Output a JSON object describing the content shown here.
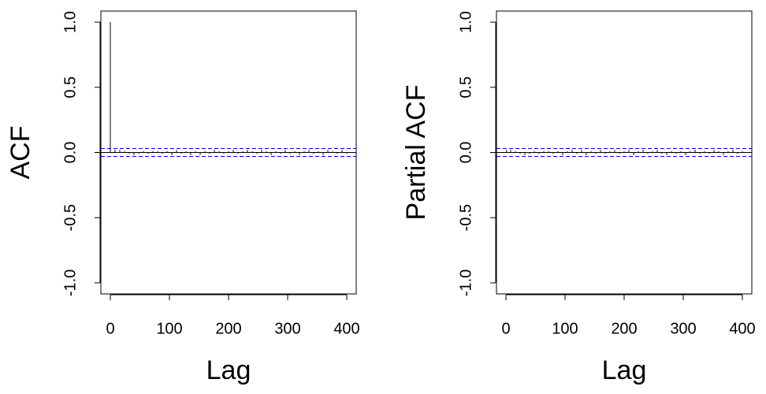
{
  "chart_data": [
    {
      "type": "acf",
      "ylabel": "ACF",
      "xlabel": "Lag",
      "x": [
        0,
        8,
        16,
        24,
        32,
        40,
        48,
        56,
        64,
        72,
        80,
        88,
        96,
        104,
        112,
        120,
        128,
        136,
        144,
        152,
        160,
        168,
        176,
        184,
        192,
        200,
        208,
        216,
        224,
        232,
        240,
        248,
        256,
        264,
        272,
        280,
        288,
        296,
        304,
        312,
        320,
        328,
        336,
        344,
        352,
        360,
        368,
        376,
        384,
        392,
        400
      ],
      "values": [
        1,
        0.02,
        0.02,
        0.01,
        -0.01,
        -0.02,
        -0.01,
        0.01,
        -0.01,
        0.01,
        0.01,
        -0.01,
        0.01,
        -0.02,
        0.02,
        -0.01,
        0.01,
        -0.02,
        0.01,
        -0.02,
        0.01,
        -0.01,
        0.02,
        0.01,
        -0.01,
        0.01,
        0.02,
        -0.01,
        0.01,
        0.02,
        0.01,
        -0.01,
        0.02,
        0.01,
        -0.02,
        0.01,
        -0.01,
        0.02,
        -0.01,
        0.01,
        -0.02,
        0.01,
        0.02,
        -0.01,
        0.01,
        -0.02,
        0.02,
        0.01,
        -0.01,
        0.02,
        -0.01
      ],
      "color": "#000000",
      "ci": 0.03,
      "ci_color": "#0000ff",
      "xlim": [
        -16,
        416
      ],
      "ylim": [
        -1.085,
        1.085
      ],
      "xticks": [
        0,
        100,
        200,
        300,
        400
      ],
      "yticks": [
        {
          "value": -1,
          "label": "-1.0"
        },
        {
          "value": -0.5,
          "label": "-0.5"
        },
        {
          "value": 0,
          "label": "0.0"
        },
        {
          "value": 0.5,
          "label": "0.5"
        },
        {
          "value": 1,
          "label": "1.0"
        }
      ]
    },
    {
      "type": "acf",
      "ylabel": "Partial ACF",
      "xlabel": "Lag",
      "x": [
        1,
        8,
        16,
        24,
        32,
        40,
        48,
        56,
        64,
        72,
        80,
        88,
        96,
        104,
        112,
        120,
        128,
        136,
        144,
        152,
        160,
        168,
        176,
        184,
        192,
        200,
        208,
        216,
        224,
        232,
        240,
        248,
        256,
        264,
        272,
        280,
        288,
        296,
        304,
        312,
        320,
        328,
        336,
        344,
        352,
        360,
        368,
        376,
        384,
        392,
        400
      ],
      "values": [
        0.02,
        0.02,
        0.01,
        -0.01,
        -0.02,
        -0.01,
        0.01,
        -0.01,
        0.01,
        0.01,
        -0.01,
        0.01,
        -0.02,
        0.01,
        0.02,
        -0.01,
        0.02,
        -0.02,
        0.01,
        -0.01,
        0.02,
        -0.01,
        0.01,
        0.02,
        -0.01,
        0.01,
        0.02,
        -0.02,
        0.01,
        0.02,
        -0.01,
        0.01,
        0.02,
        -0.01,
        -0.02,
        0.01,
        -0.01,
        0.01,
        -0.02,
        0.01,
        0.02,
        -0.01,
        0.01,
        -0.01,
        0.02,
        0.01,
        -0.02,
        0.01,
        0.02,
        -0.01,
        0.01
      ],
      "color": "#000000",
      "ci": 0.03,
      "ci_color": "#0000ff",
      "xlim": [
        -16,
        416
      ],
      "ylim": [
        -1.085,
        1.085
      ],
      "xticks": [
        0,
        100,
        200,
        300,
        400
      ],
      "yticks": [
        {
          "value": -1,
          "label": "-1.0"
        },
        {
          "value": -0.5,
          "label": "-0.5"
        },
        {
          "value": 0,
          "label": "0.0"
        },
        {
          "value": 0.5,
          "label": "0.5"
        },
        {
          "value": 1,
          "label": "1.0"
        }
      ]
    }
  ]
}
